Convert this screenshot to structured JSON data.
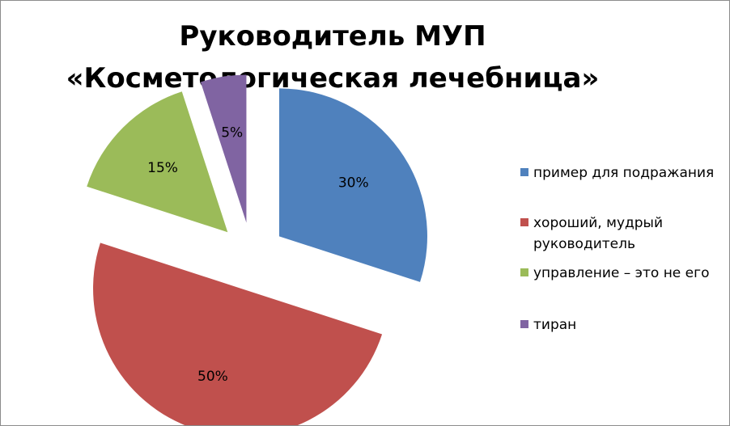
{
  "chart_data": {
    "type": "pie",
    "title": "Руководитель МУП «Косметологическая лечебница»",
    "slices": [
      {
        "label": "пример для подражания",
        "value": 30,
        "display": "30%",
        "color": "#4f81bd"
      },
      {
        "label": "хороший, мудрый руководитель",
        "value": 50,
        "display": "50%",
        "color": "#c0504d"
      },
      {
        "label": "управление – это не его",
        "value": 15,
        "display": "15%",
        "color": "#9bbb59"
      },
      {
        "label": "тиран",
        "value": 5,
        "display": "5%",
        "color": "#8064a2"
      }
    ],
    "exploded": true,
    "legend_position": "right"
  }
}
